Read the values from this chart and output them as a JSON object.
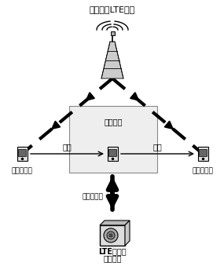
{
  "title_top": "移动通信LTE基站",
  "label_detection": "检测区域",
  "label_left_move": "移动",
  "label_right_move": "移动",
  "label_left_region": "非检测区域",
  "label_right_region": "非检测区域",
  "label_signal": "手机标识号",
  "label_device_line1": "LTE定位伪",
  "label_device_line2": "基站设备",
  "bg_color": "#ffffff"
}
